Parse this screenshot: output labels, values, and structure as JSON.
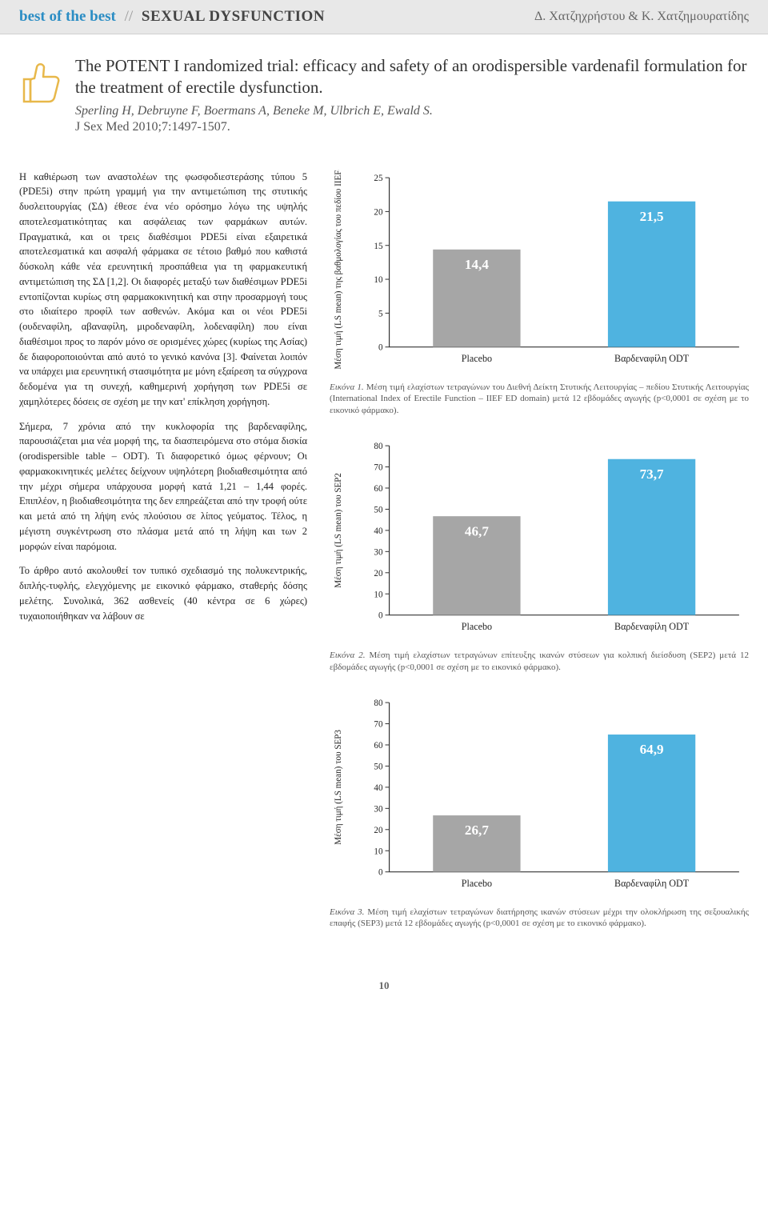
{
  "header": {
    "best": "best of the best",
    "section": "SEXUAL DYSFUNCTION",
    "authors_right": "Δ. Χατζηχρήστου & Κ. Χατζημουρατίδης"
  },
  "title_block": {
    "title": "The POTENT I randomized trial: efficacy and safety of an orodispersible vardenafil formulation for the treatment of erectile dysfunction.",
    "authors": "Sperling H, Debruyne F, Boermans A, Beneke M, Ulbrich E, Ewald S.",
    "journal": "J Sex Med 2010;7:1497-1507."
  },
  "body_paragraphs": [
    "Η καθιέρωση των αναστολέων της φωσφοδιεστεράσης τύπου 5 (PDE5i) στην πρώτη γραμμή για την αντιμετώπιση της στυτικής δυσλειτουργίας (ΣΔ) έθεσε ένα νέο ορόσημο λόγω της υψηλής αποτελεσματικότητας και ασφάλειας των φαρμάκων αυτών. Πραγματικά, και οι τρεις διαθέσιμοι PDE5i είναι εξαιρετικά αποτελεσματικά και ασφαλή φάρμακα σε τέτοιο βαθμό που καθιστά δύσκολη κάθε νέα ερευνητική προσπάθεια για τη φαρμακευτική αντιμετώπιση της ΣΔ [1,2]. Οι διαφορές μεταξύ των διαθέσιμων PDE5i εντοπίζονται κυρίως στη φαρμακοκινητική και στην προσαρμογή τους στο ιδιαίτερο προφίλ των ασθενών. Ακόμα και οι νέοι PDE5i (ουδεναφίλη, αβαναφίλη, μιροδεναφίλη, λοδεναφίλη) που είναι διαθέσιμοι προς το παρόν μόνο σε ορισμένες χώρες (κυρίως της Ασίας) δε διαφοροποιούνται από αυτό το γενικό κανόνα [3]. Φαίνεται λοιπόν να υπάρχει μια ερευνητική στασιμότητα με μόνη εξαίρεση τα σύγχρονα δεδομένα για τη συνεχή, καθημερινή χορήγηση των PDE5i σε χαμηλότερες δόσεις σε σχέση με την κατ' επίκληση χορήγηση.",
    "Σήμερα, 7 χρόνια από την κυκλοφορία της βαρδεναφίλης, παρουσιάζεται μια νέα μορφή της, τα διασπειρόμενα στο στόμα δισκία (orodispersible table – ODT). Τι διαφορετικό όμως φέρνουν; Οι φαρμακοκινητικές μελέτες δείχνουν υψηλότερη βιοδιαθεσιμότητα από την μέχρι σήμερα υπάρχουσα μορφή κατά 1,21 – 1,44 φορές. Επιπλέον, η βιοδιαθεσιμότητα της δεν επηρεάζεται από την τροφή ούτε και μετά από τη λήψη ενός πλούσιου σε λίπος γεύματος. Τέλος, η μέγιστη συγκέντρωση στο πλάσμα μετά από τη λήψη και των 2 μορφών είναι παρόμοια.",
    "Το άρθρο αυτό ακολουθεί τον τυπικό σχεδιασμό της πολυκεντρικής, διπλής-τυφλής, ελεγχόμενης με εικονικό φάρμακο, σταθερής δόσης μελέτης. Συνολικά, 362 ασθενείς (40 κέντρα σε 6 χώρες) τυχαιοποιήθηκαν να λάβουν σε"
  ],
  "charts": {
    "common": {
      "categories": [
        "Placebo",
        "Βαρδεναφίλη ODT"
      ],
      "bar_colors": [
        "#a6a6a6",
        "#4fb3e0"
      ],
      "bar_width": 0.5,
      "axis_color": "#333333",
      "value_fontsize": 17,
      "value_color": "#ffffff",
      "label_fontsize": 12,
      "ylabel_fontsize": 11
    },
    "chart1": {
      "type": "bar",
      "ylabel": "Μέση τιμή (LS mean) της βαθμολογίας του πεδίου IIEF-ED",
      "ylim": [
        0,
        25
      ],
      "ytick_step": 5,
      "values": [
        14.4,
        21.5
      ],
      "value_labels": [
        "14,4",
        "21,5"
      ]
    },
    "chart2": {
      "type": "bar",
      "ylabel": "Μέση τιμή (LS mean) του SEP2",
      "ylim": [
        0,
        80
      ],
      "ytick_step": 10,
      "values": [
        46.7,
        73.7
      ],
      "value_labels": [
        "46,7",
        "73,7"
      ]
    },
    "chart3": {
      "type": "bar",
      "ylabel": "Μέση τιμή (LS mean) του SEP3",
      "ylim": [
        0,
        80
      ],
      "ytick_step": 10,
      "values": [
        26.7,
        64.9
      ],
      "value_labels": [
        "26,7",
        "64,9"
      ]
    }
  },
  "captions": {
    "c1_num": "Εικόνα 1. ",
    "c1": "Μέση τιμή ελαχίστων τετραγώνων του Διεθνή Δείκτη Στυτικής Λειτουργίας – πεδίου Στυτικής Λειτουργίας (International Index of Erectile Function – IIEF ED domain) μετά 12 εβδομάδες αγωγής (p<0,0001 σε σχέση με το εικονικό φάρμακο).",
    "c2_num": "Εικόνα 2. ",
    "c2": "Μέση τιμή ελαχίστων τετραγώνων επίτευξης ικανών στύσεων για κολπική διείσδυση (SEP2) μετά 12 εβδομάδες αγωγής (p<0,0001 σε σχέση με το εικονικό φάρμακο).",
    "c3_num": "Εικόνα 3. ",
    "c3": "Μέση τιμή ελαχίστων τετραγώνων διατήρησης ικανών στύσεων μέχρι την ολοκλήρωση της σεξουαλικής επαφής (SEP3) μετά 12 εβδομάδες αγωγής (p<0,0001 σε σχέση με το εικονικό φάρμακο)."
  },
  "page_number": "10"
}
